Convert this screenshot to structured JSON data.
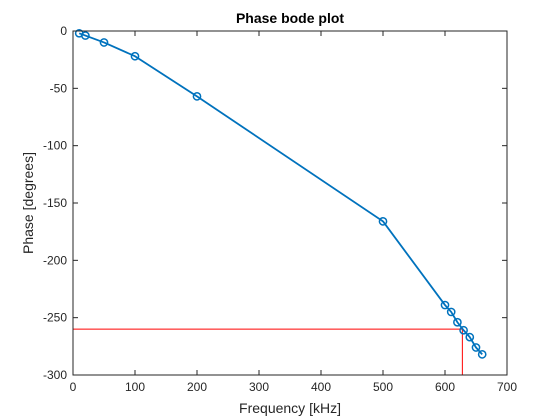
{
  "chart_data": {
    "type": "line",
    "title": "Phase bode plot",
    "xlabel": "Frequency [kHz]",
    "ylabel": "Phase [degrees]",
    "xlim": [
      0,
      700
    ],
    "ylim": [
      -300,
      0
    ],
    "xticks": [
      0,
      100,
      200,
      300,
      400,
      500,
      600,
      700
    ],
    "yticks": [
      0,
      -50,
      -100,
      -150,
      -200,
      -250,
      -300
    ],
    "grid": false,
    "series": [
      {
        "color": "#0072bd",
        "marker": "circle",
        "x": [
          10,
          20,
          50,
          100,
          200,
          500,
          600,
          610,
          620,
          630,
          640,
          650,
          660
        ],
        "y": [
          -2,
          -4,
          -10,
          -22,
          -57,
          -166,
          -239,
          -245,
          -254,
          -261,
          -267,
          -276,
          -282
        ]
      }
    ],
    "reference_lines": {
      "color": "#ff0000",
      "x": 628,
      "y": -260
    }
  }
}
